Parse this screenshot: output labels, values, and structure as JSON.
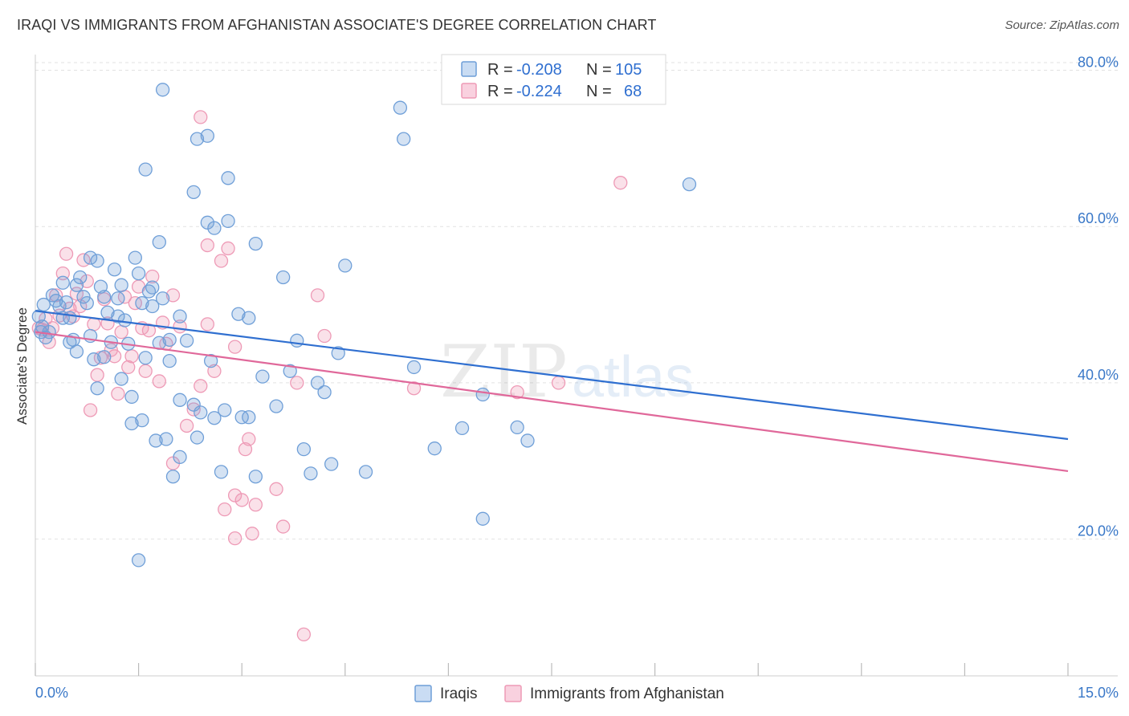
{
  "title": "IRAQI VS IMMIGRANTS FROM AFGHANISTAN ASSOCIATE'S DEGREE CORRELATION CHART",
  "source": "Source: ZipAtlas.com",
  "watermark": {
    "zip": "ZIP",
    "atlas": "atlas"
  },
  "legend": {
    "r_label": "R =",
    "n_label": "N =",
    "rows": [
      {
        "r": "-0.208",
        "n": "105"
      },
      {
        "r": "-0.224",
        "n": "68"
      }
    ]
  },
  "chart_data": {
    "type": "scatter",
    "title": "IRAQI VS IMMIGRANTS FROM AFGHANISTAN ASSOCIATE'S DEGREE CORRELATION CHART",
    "ylabel": "Associate's Degree",
    "xlabel": "",
    "xlim": [
      0,
      15
    ],
    "ylim": [
      2.5,
      82
    ],
    "x_tick_labels": [
      {
        "value": 0,
        "label": "0.0%"
      },
      {
        "value": 15,
        "label": "15.0%"
      }
    ],
    "y_tick_labels": [
      {
        "value": 20,
        "label": "20.0%"
      },
      {
        "value": 40,
        "label": "40.0%"
      },
      {
        "value": 60,
        "label": "60.0%"
      },
      {
        "value": 80,
        "label": "80.0%"
      }
    ],
    "colors": {
      "iraqis": "#6f9fd8",
      "afghan": "#ee9ab6",
      "iraqis_line": "#2f6fd0",
      "afghan_line": "#e0689a"
    },
    "series": [
      {
        "name": "Iraqis",
        "trend": {
          "x0": 0,
          "y0": 49.2,
          "x1": 15,
          "y1": 32.8
        },
        "points": [
          [
            0.05,
            48.5
          ],
          [
            0.12,
            50.0
          ],
          [
            0.1,
            47.2
          ],
          [
            0.2,
            46.5
          ],
          [
            0.25,
            51.2
          ],
          [
            0.3,
            50.5
          ],
          [
            0.35,
            49.8
          ],
          [
            0.4,
            52.8
          ],
          [
            0.45,
            50.3
          ],
          [
            0.5,
            48.3
          ],
          [
            0.55,
            45.5
          ],
          [
            0.6,
            44.0
          ],
          [
            0.65,
            53.5
          ],
          [
            0.7,
            51.0
          ],
          [
            0.75,
            50.2
          ],
          [
            0.8,
            46.0
          ],
          [
            0.85,
            43.0
          ],
          [
            0.9,
            55.6
          ],
          [
            0.95,
            52.3
          ],
          [
            1.0,
            51.0
          ],
          [
            1.05,
            49.0
          ],
          [
            1.1,
            45.2
          ],
          [
            1.15,
            54.5
          ],
          [
            1.2,
            50.8
          ],
          [
            1.25,
            52.5
          ],
          [
            1.3,
            48.0
          ],
          [
            1.35,
            45.0
          ],
          [
            1.4,
            38.2
          ],
          [
            1.45,
            56.0
          ],
          [
            1.5,
            54.0
          ],
          [
            1.55,
            50.2
          ],
          [
            1.6,
            43.2
          ],
          [
            1.65,
            51.7
          ],
          [
            1.7,
            49.8
          ],
          [
            1.75,
            32.6
          ],
          [
            1.8,
            45.1
          ],
          [
            1.85,
            50.8
          ],
          [
            1.9,
            32.8
          ],
          [
            1.95,
            42.8
          ],
          [
            2.0,
            28.0
          ],
          [
            2.1,
            37.8
          ],
          [
            2.2,
            45.4
          ],
          [
            2.3,
            37.2
          ],
          [
            2.35,
            33.0
          ],
          [
            2.4,
            36.2
          ],
          [
            2.5,
            60.5
          ],
          [
            2.55,
            42.8
          ],
          [
            2.6,
            35.5
          ],
          [
            2.7,
            28.6
          ],
          [
            2.8,
            66.2
          ],
          [
            3.0,
            35.6
          ],
          [
            3.1,
            35.6
          ],
          [
            3.2,
            28.0
          ],
          [
            3.3,
            40.8
          ],
          [
            3.5,
            37.0
          ],
          [
            3.6,
            53.5
          ],
          [
            3.8,
            45.4
          ],
          [
            3.9,
            31.5
          ],
          [
            4.0,
            28.4
          ],
          [
            4.1,
            40.0
          ],
          [
            4.2,
            38.8
          ],
          [
            4.3,
            29.6
          ],
          [
            4.4,
            43.8
          ],
          [
            4.5,
            55.0
          ],
          [
            4.8,
            28.6
          ],
          [
            5.5,
            42.0
          ],
          [
            5.8,
            31.6
          ],
          [
            6.2,
            34.2
          ],
          [
            6.5,
            22.6
          ],
          [
            6.5,
            38.5
          ],
          [
            7.0,
            34.3
          ],
          [
            7.15,
            32.6
          ],
          [
            1.5,
            17.3
          ],
          [
            1.6,
            67.3
          ],
          [
            1.85,
            77.5
          ],
          [
            2.3,
            64.4
          ],
          [
            2.35,
            71.2
          ],
          [
            2.5,
            71.6
          ],
          [
            3.2,
            57.8
          ],
          [
            3.1,
            48.3
          ],
          [
            2.6,
            59.8
          ],
          [
            0.8,
            56.0
          ],
          [
            1.7,
            52.2
          ],
          [
            1.4,
            34.8
          ],
          [
            0.15,
            45.8
          ],
          [
            0.08,
            46.5
          ],
          [
            0.5,
            45.2
          ],
          [
            1.25,
            40.5
          ],
          [
            1.55,
            35.2
          ],
          [
            2.1,
            30.5
          ],
          [
            1.8,
            58.0
          ],
          [
            2.1,
            48.5
          ],
          [
            2.8,
            60.7
          ],
          [
            3.7,
            41.5
          ],
          [
            0.6,
            52.5
          ],
          [
            0.9,
            39.3
          ],
          [
            1.0,
            43.3
          ],
          [
            1.2,
            48.5
          ],
          [
            5.3,
            75.2
          ],
          [
            5.35,
            71.2
          ],
          [
            9.5,
            65.4
          ],
          [
            2.75,
            36.5
          ],
          [
            1.95,
            45.5
          ],
          [
            0.4,
            48.3
          ],
          [
            2.95,
            48.8
          ]
        ]
      },
      {
        "name": "Immigrants from Afghanistan",
        "trend": {
          "x0": 0,
          "y0": 46.5,
          "x1": 15,
          "y1": 28.7
        },
        "points": [
          [
            0.05,
            47.0
          ],
          [
            0.1,
            46.8
          ],
          [
            0.15,
            48.2
          ],
          [
            0.2,
            45.2
          ],
          [
            0.25,
            47.0
          ],
          [
            0.3,
            51.2
          ],
          [
            0.35,
            48.6
          ],
          [
            0.4,
            54.0
          ],
          [
            0.45,
            56.5
          ],
          [
            0.5,
            49.5
          ],
          [
            0.55,
            48.5
          ],
          [
            0.6,
            51.4
          ],
          [
            0.65,
            49.8
          ],
          [
            0.7,
            55.7
          ],
          [
            0.75,
            53.0
          ],
          [
            0.8,
            36.5
          ],
          [
            0.85,
            47.5
          ],
          [
            0.9,
            41.0
          ],
          [
            0.95,
            43.2
          ],
          [
            1.0,
            50.7
          ],
          [
            1.05,
            47.6
          ],
          [
            1.1,
            44.2
          ],
          [
            1.15,
            43.4
          ],
          [
            1.2,
            38.6
          ],
          [
            1.25,
            46.5
          ],
          [
            1.3,
            51.0
          ],
          [
            1.35,
            42.0
          ],
          [
            1.4,
            43.4
          ],
          [
            1.45,
            50.2
          ],
          [
            1.5,
            52.3
          ],
          [
            1.55,
            47.0
          ],
          [
            1.6,
            41.5
          ],
          [
            1.7,
            53.6
          ],
          [
            1.8,
            40.2
          ],
          [
            1.85,
            47.7
          ],
          [
            1.9,
            45.0
          ],
          [
            2.0,
            51.2
          ],
          [
            2.1,
            47.2
          ],
          [
            2.2,
            34.5
          ],
          [
            2.3,
            36.6
          ],
          [
            2.4,
            39.6
          ],
          [
            2.5,
            57.6
          ],
          [
            2.6,
            41.5
          ],
          [
            2.7,
            55.6
          ],
          [
            2.8,
            57.2
          ],
          [
            2.9,
            44.6
          ],
          [
            3.0,
            25.0
          ],
          [
            3.05,
            31.5
          ],
          [
            3.1,
            32.8
          ],
          [
            3.2,
            24.4
          ],
          [
            3.5,
            26.4
          ],
          [
            3.6,
            21.6
          ],
          [
            3.8,
            40.0
          ],
          [
            3.9,
            7.8
          ],
          [
            4.1,
            51.2
          ],
          [
            4.2,
            46.0
          ],
          [
            2.4,
            74.0
          ],
          [
            2.5,
            47.5
          ],
          [
            2.9,
            25.6
          ],
          [
            3.15,
            20.7
          ],
          [
            2.75,
            23.8
          ],
          [
            2.9,
            20.1
          ],
          [
            5.5,
            39.3
          ],
          [
            7.0,
            38.8
          ],
          [
            7.6,
            40.0
          ],
          [
            8.5,
            65.6
          ],
          [
            2.0,
            29.7
          ],
          [
            1.65,
            46.7
          ]
        ]
      }
    ]
  },
  "bottom_legend": [
    {
      "label": "Iraqis"
    },
    {
      "label": "Immigrants from Afghanistan"
    }
  ]
}
